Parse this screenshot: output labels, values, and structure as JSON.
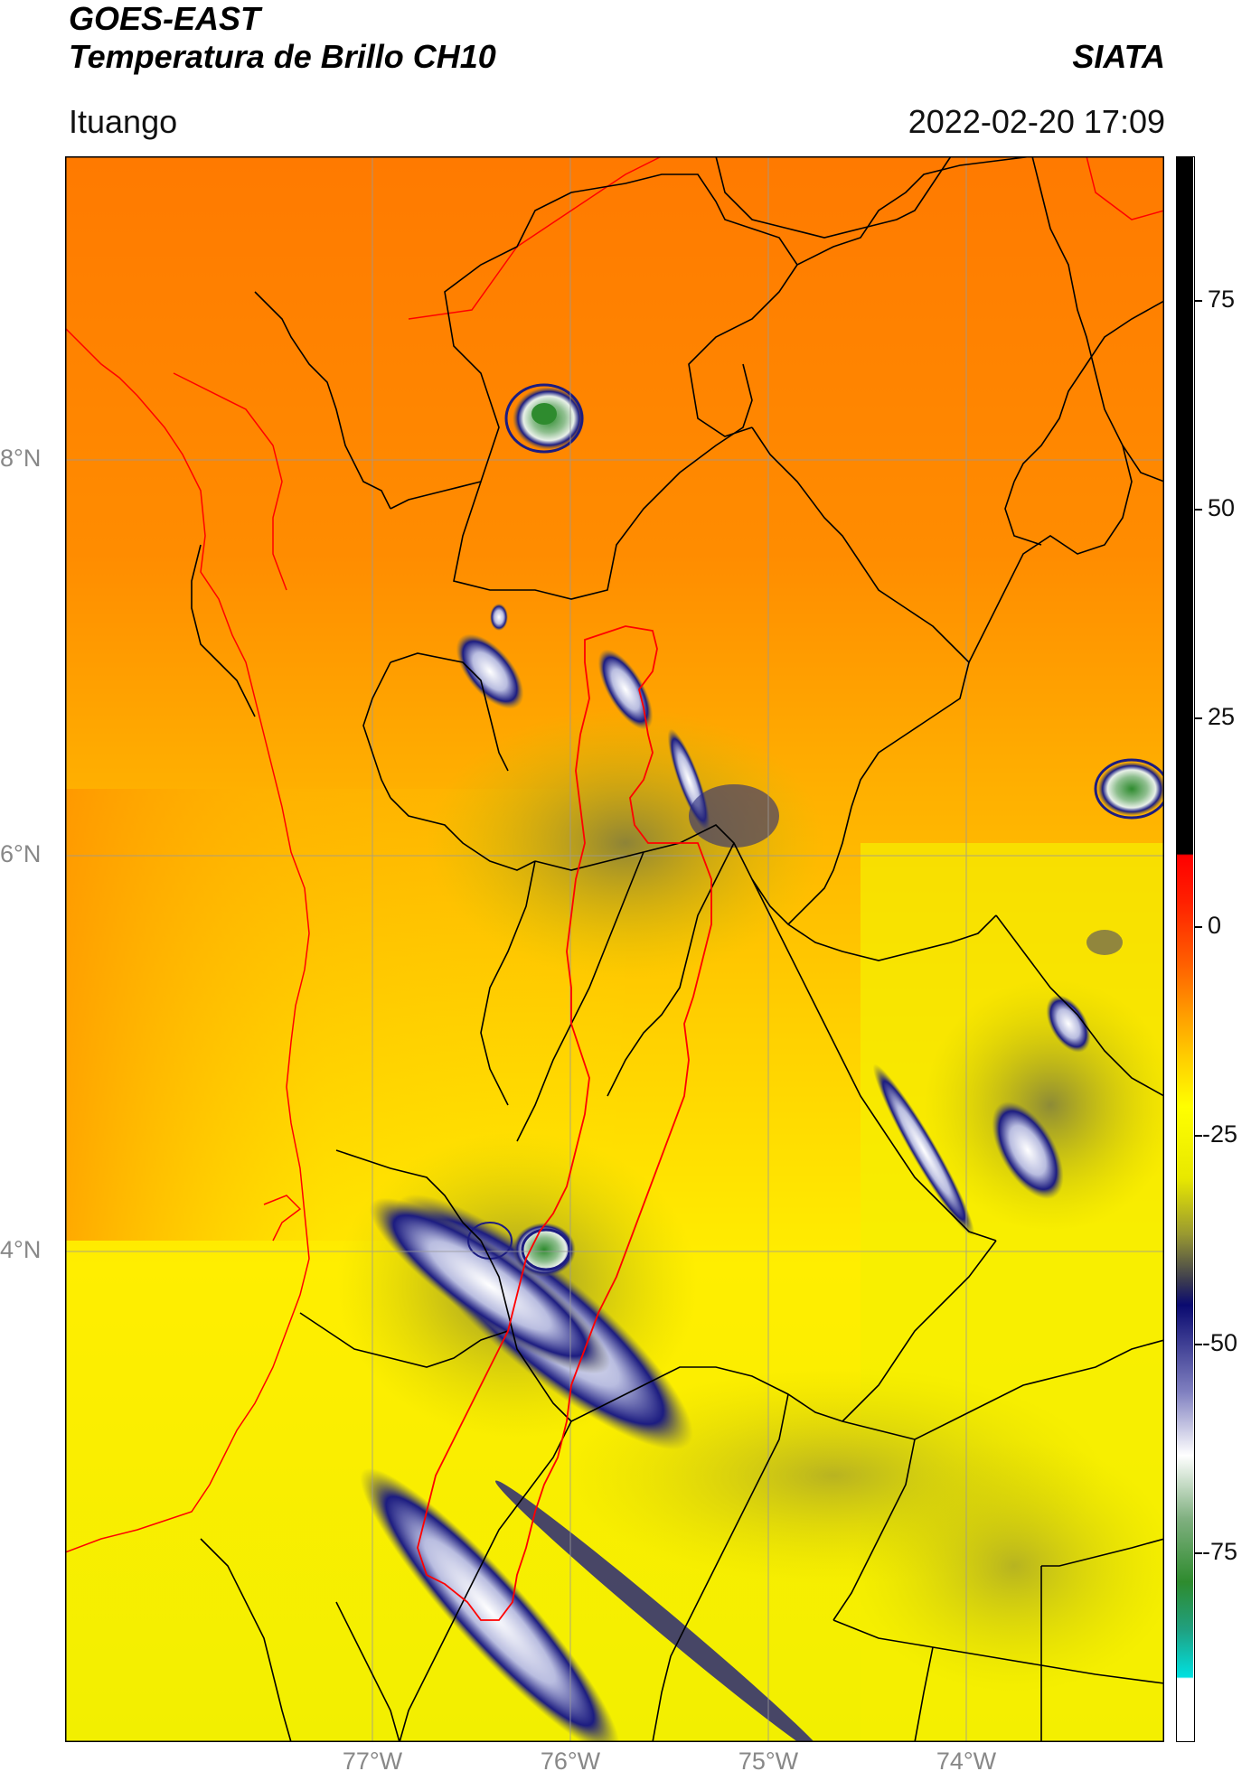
{
  "header": {
    "title_line1": "GOES-EAST",
    "title_line2": "Temperatura de Brillo CH10",
    "org": "SIATA",
    "location": "Ituango",
    "timestamp": "2022-02-20 17:09"
  },
  "axes": {
    "lat_labels": [
      "8°N",
      "6°N",
      "4°N"
    ],
    "lon_labels": [
      "77°W",
      "76°W",
      "75°W",
      "74°W"
    ]
  },
  "colorbar": {
    "ticks": [
      "75",
      "50",
      "25",
      "0",
      "-25",
      "-50",
      "-75"
    ],
    "colors": {
      "black": "#000000",
      "red": "#ff0000",
      "orange": "#ff8c00",
      "yellow": "#ffff00",
      "olive": "#8a8a3a",
      "navy": "#10106e",
      "white": "#ffffff",
      "green": "#2e8b2e",
      "cyan": "#00e5e5"
    }
  },
  "map": {
    "borders_color": "#000000",
    "basin_outline_color": "#ff0000",
    "grid_color": "#999999"
  }
}
